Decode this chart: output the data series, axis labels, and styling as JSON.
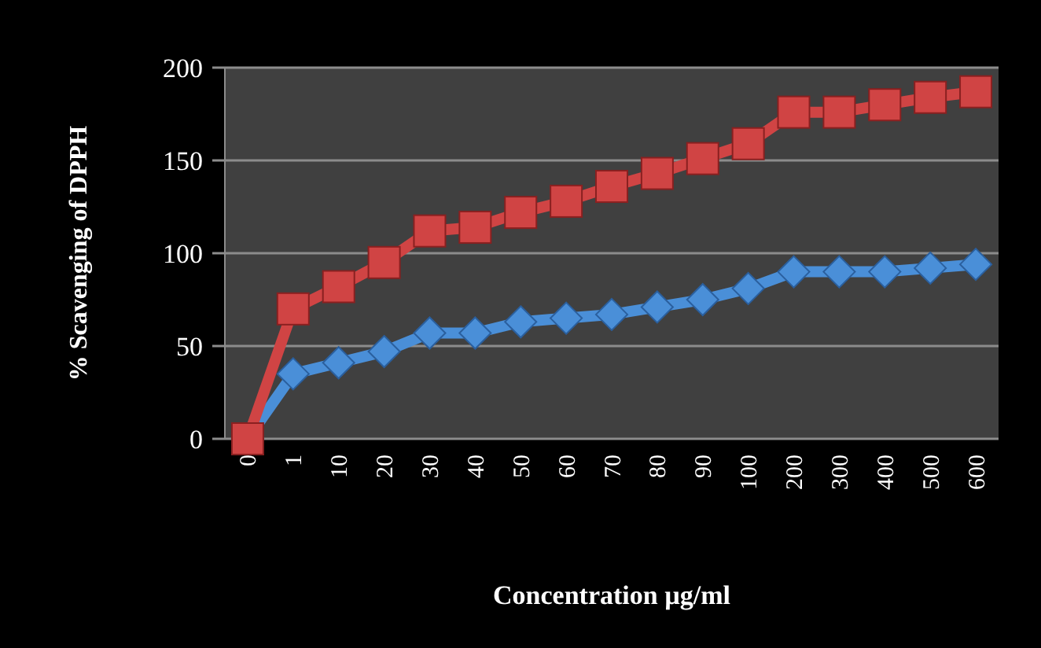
{
  "chart_data": {
    "type": "line",
    "xlabel": "Concentration µg/ml",
    "ylabel": "% Scavenging of DPPH",
    "categories": [
      "0",
      "1",
      "10",
      "20",
      "30",
      "40",
      "50",
      "60",
      "70",
      "80",
      "90",
      "100",
      "200",
      "300",
      "400",
      "500",
      "600"
    ],
    "series": [
      {
        "color": "#4a8fd8",
        "marker": "diamond",
        "values": [
          0,
          35,
          41,
          47,
          57,
          57,
          63,
          65,
          67,
          71,
          75,
          81,
          90,
          90,
          90,
          92,
          94
        ]
      },
      {
        "color": "#d04444",
        "marker": "square",
        "values": [
          0,
          70,
          82,
          95,
          112,
          114,
          122,
          128,
          136,
          143,
          151,
          159,
          176,
          176,
          180,
          184,
          187
        ]
      }
    ],
    "ylim": [
      0,
      200
    ],
    "yticks": [
      0,
      50,
      100,
      150,
      200
    ],
    "grid": "y"
  }
}
